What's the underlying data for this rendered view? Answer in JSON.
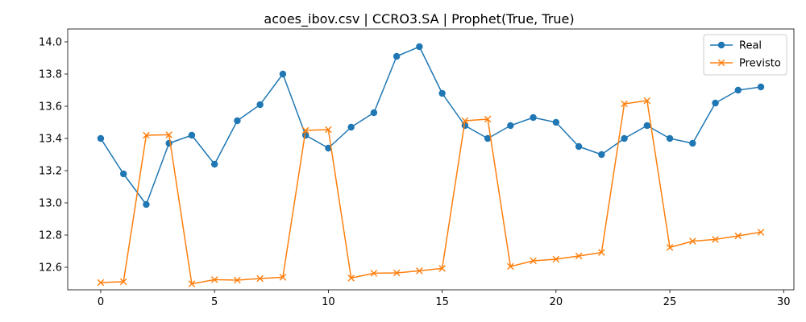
{
  "chart_data": {
    "type": "line",
    "title": "acoes_ibov.csv | CCRO3.SA | Prophet(True, True)",
    "xlabel": "",
    "ylabel": "",
    "xlim": [
      -1.45,
      30.45
    ],
    "ylim": [
      12.46,
      14.08
    ],
    "xticks": [
      0,
      5,
      10,
      15,
      20,
      25,
      30
    ],
    "xtick_labels": [
      "0",
      "5",
      "10",
      "15",
      "20",
      "25",
      "30"
    ],
    "yticks": [
      12.6,
      12.8,
      13.0,
      13.2,
      13.4,
      13.6,
      13.8,
      14.0
    ],
    "ytick_labels": [
      "12.6",
      "12.8",
      "13.0",
      "13.2",
      "13.4",
      "13.6",
      "13.8",
      "14.0"
    ],
    "grid": false,
    "legend_position": "top-right",
    "x": [
      0,
      1,
      2,
      3,
      4,
      5,
      6,
      7,
      8,
      9,
      10,
      11,
      12,
      13,
      14,
      15,
      16,
      17,
      18,
      19,
      20,
      21,
      22,
      23,
      24,
      25,
      26,
      27,
      28,
      29
    ],
    "series": [
      {
        "name": "Real",
        "color": "#1f77b4",
        "marker": "circle",
        "values": [
          13.4,
          13.18,
          12.99,
          13.37,
          13.42,
          13.24,
          13.51,
          13.61,
          13.8,
          13.42,
          13.34,
          13.47,
          13.56,
          13.91,
          13.97,
          13.68,
          13.48,
          13.4,
          13.48,
          13.53,
          13.5,
          13.35,
          13.3,
          13.4,
          13.48,
          13.4,
          13.37,
          13.62,
          13.7,
          13.72
        ]
      },
      {
        "name": "Previsto",
        "color": "#ff7f0e",
        "marker": "x",
        "values": [
          12.505,
          12.51,
          13.42,
          13.423,
          12.497,
          12.523,
          12.52,
          12.53,
          12.538,
          13.45,
          13.455,
          12.533,
          12.563,
          12.565,
          12.578,
          12.593,
          13.51,
          13.52,
          12.605,
          12.64,
          12.65,
          12.67,
          12.692,
          13.615,
          13.635,
          12.723,
          12.762,
          12.773,
          12.795,
          12.818
        ]
      }
    ]
  }
}
